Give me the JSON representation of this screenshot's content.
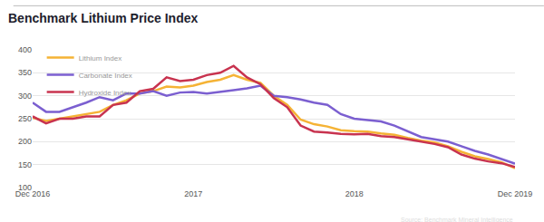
{
  "chart_data": {
    "type": "line",
    "title": "Benchmark Lithium Price Index",
    "categories": [
      "Dec 2016",
      null,
      null,
      null,
      null,
      null,
      null,
      null,
      null,
      null,
      null,
      null,
      "2017",
      null,
      null,
      null,
      null,
      null,
      null,
      null,
      null,
      null,
      null,
      null,
      "2018",
      null,
      null,
      null,
      null,
      null,
      null,
      null,
      null,
      null,
      null,
      null,
      "Dec 2019"
    ],
    "series": [
      {
        "name": "Lithium Index",
        "color": "#f5b335",
        "values": [
          252,
          245,
          250,
          255,
          260,
          265,
          280,
          290,
          305,
          310,
          320,
          318,
          322,
          330,
          335,
          345,
          335,
          328,
          300,
          280,
          248,
          238,
          233,
          225,
          223,
          222,
          218,
          215,
          208,
          202,
          198,
          190,
          178,
          168,
          162,
          155,
          142
        ]
      },
      {
        "name": "Carbonate Index",
        "color": "#7b5fd0",
        "values": [
          285,
          265,
          265,
          275,
          285,
          297,
          290,
          305,
          305,
          310,
          300,
          307,
          308,
          305,
          308,
          312,
          316,
          322,
          300,
          297,
          292,
          285,
          280,
          260,
          250,
          247,
          244,
          235,
          222,
          210,
          205,
          200,
          190,
          180,
          172,
          162,
          152
        ]
      },
      {
        "name": "Hydroxide Index",
        "color": "#c8334f",
        "values": [
          255,
          240,
          250,
          250,
          255,
          255,
          280,
          285,
          310,
          315,
          340,
          332,
          335,
          345,
          350,
          365,
          340,
          325,
          295,
          275,
          235,
          222,
          220,
          217,
          216,
          217,
          212,
          210,
          205,
          200,
          195,
          188,
          172,
          163,
          157,
          153,
          145
        ]
      }
    ],
    "ylim": [
      100,
      400
    ],
    "yticks": [
      100,
      150,
      200,
      250,
      300,
      350,
      400
    ],
    "grid": true,
    "legend": "top-left",
    "annotations": [
      "Source: Benchmark Mineral Intelligence"
    ]
  }
}
